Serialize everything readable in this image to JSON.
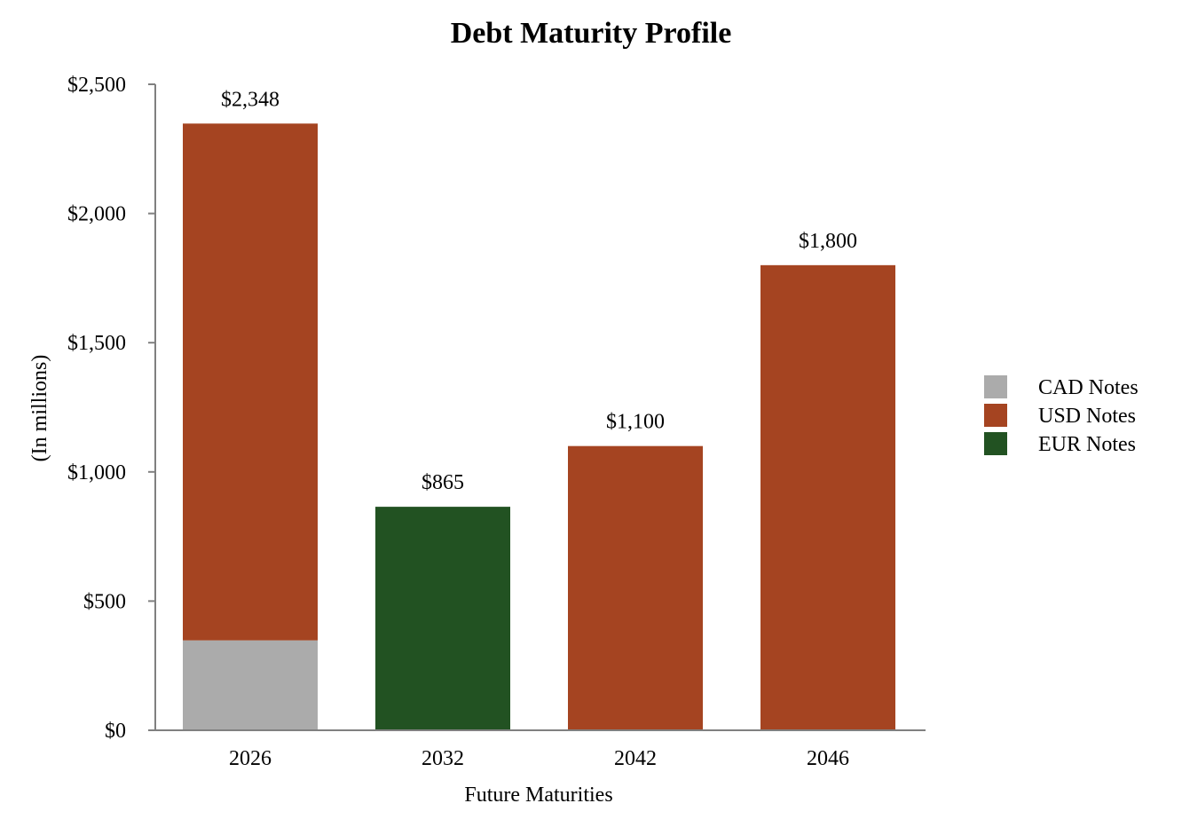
{
  "chart_data": {
    "type": "bar",
    "stacked": true,
    "title": "Debt Maturity Profile",
    "xlabel": "Future Maturities",
    "ylabel": "(In millions)",
    "categories": [
      "2026",
      "2032",
      "2042",
      "2046"
    ],
    "ylim": [
      0,
      2500
    ],
    "yticks": [
      0,
      500,
      1000,
      1500,
      2000,
      2500
    ],
    "ytick_labels": [
      "$0",
      "$500",
      "$1,000",
      "$1,500",
      "$2,000",
      "$2,500"
    ],
    "series": [
      {
        "name": "CAD Notes",
        "color": "#ababab",
        "values": [
          348,
          0,
          0,
          0
        ]
      },
      {
        "name": "USD Notes",
        "color": "#a54421",
        "values": [
          2000,
          0,
          1100,
          1800
        ]
      },
      {
        "name": "EUR Notes",
        "color": "#225222",
        "values": [
          0,
          865,
          0,
          0
        ]
      }
    ],
    "totals": [
      2348,
      865,
      1100,
      1800
    ],
    "total_labels": [
      "$2,348",
      "$865",
      "$1,100",
      "$1,800"
    ],
    "legend_position": "right",
    "grid": false
  }
}
